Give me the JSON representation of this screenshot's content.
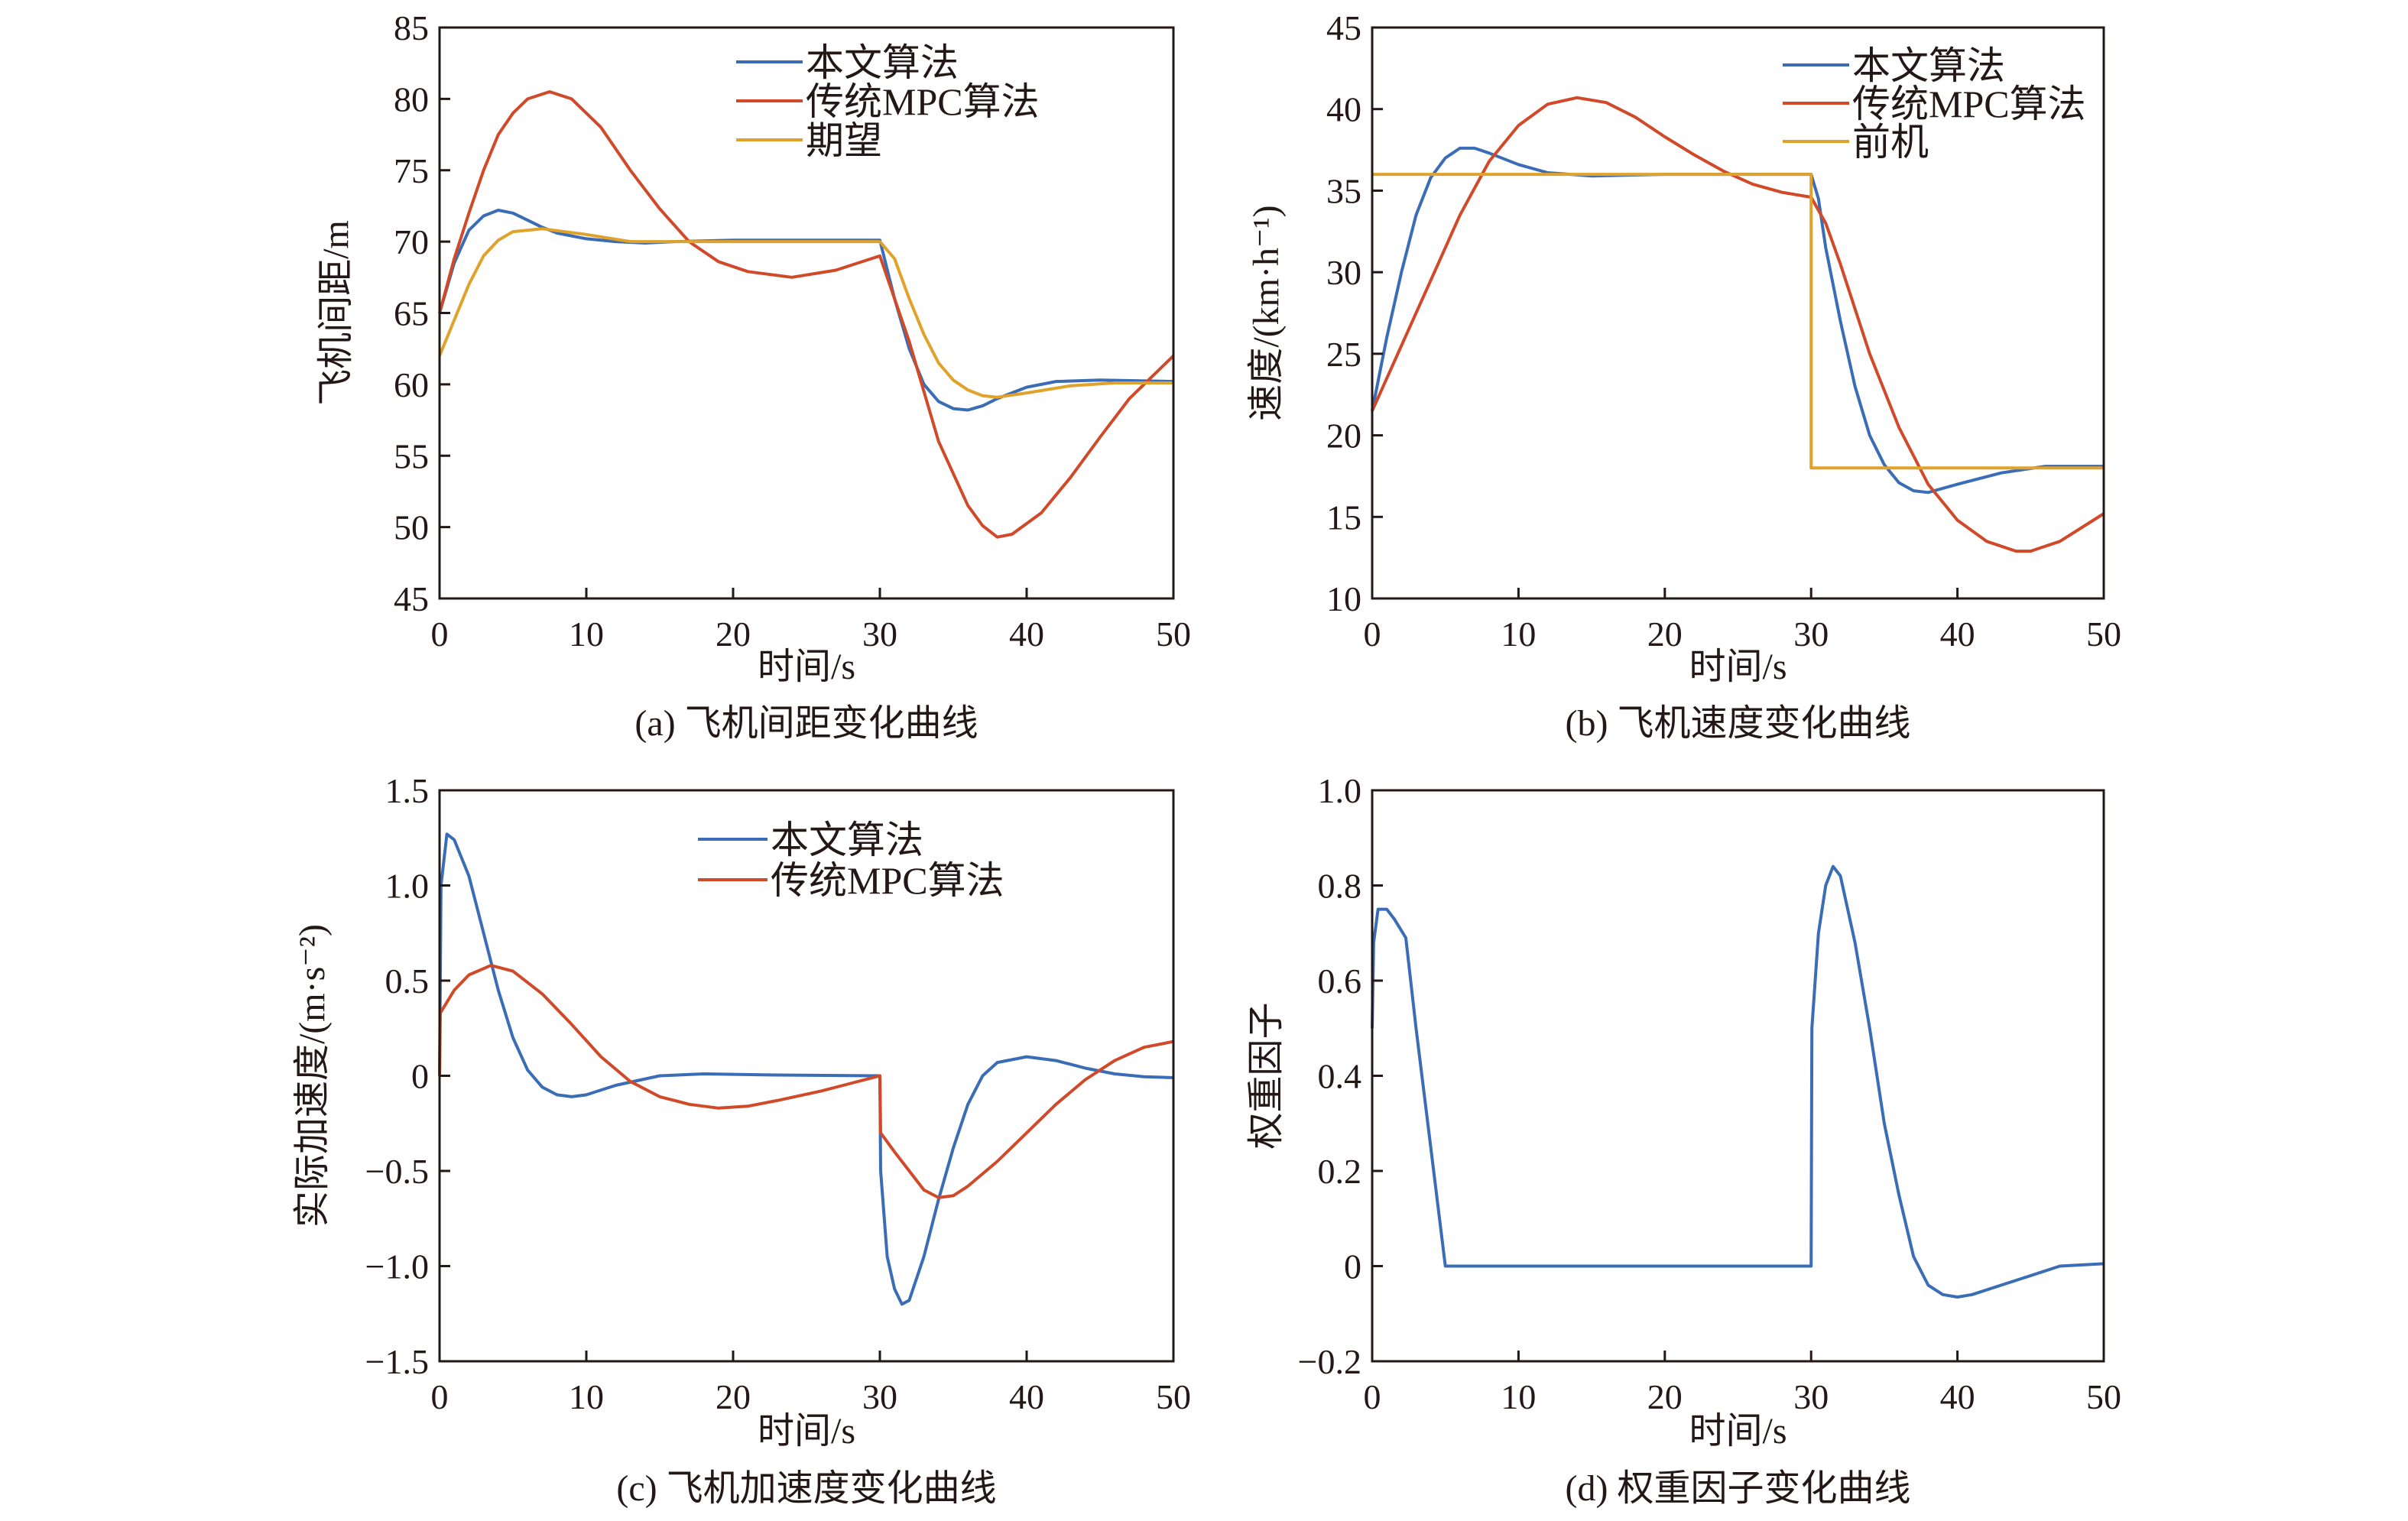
{
  "chart_data": [
    {
      "type": "line",
      "title": "(a) 飞机间距变化曲线",
      "xlabel": "时间/s",
      "ylabel": "飞机间距/m",
      "xlim": [
        0,
        50
      ],
      "ylim": [
        45,
        85
      ],
      "xticks": [
        0,
        10,
        20,
        30,
        40,
        50
      ],
      "xtick_labels": [
        "0",
        "10",
        "20",
        "30",
        "40",
        "50"
      ],
      "yticks": [
        45,
        50,
        55,
        60,
        65,
        70,
        75,
        80,
        85
      ],
      "ytick_labels": [
        "45",
        "50",
        "55",
        "60",
        "65",
        "70",
        "75",
        "80",
        "85"
      ],
      "legend_position": "top-right",
      "series": [
        {
          "name": "本文算法",
          "color": "#3a6db5",
          "x": [
            0,
            1,
            2,
            3,
            4,
            5,
            6,
            7,
            8,
            10,
            12,
            14,
            16,
            20,
            30,
            31,
            32,
            33,
            34,
            35,
            36,
            37,
            38,
            40,
            42,
            45,
            50
          ],
          "y": [
            65,
            68.5,
            70.8,
            71.8,
            72.2,
            72.0,
            71.5,
            71.0,
            70.6,
            70.2,
            70.0,
            69.9,
            70.0,
            70.1,
            70.1,
            66,
            62.5,
            60,
            58.8,
            58.3,
            58.2,
            58.5,
            59,
            59.8,
            60.2,
            60.3,
            60.2
          ]
        },
        {
          "name": "传统MPC算法",
          "color": "#d04a2a",
          "x": [
            0,
            1,
            2,
            3,
            4,
            5,
            6,
            7.5,
            9,
            11,
            13,
            15,
            17,
            19,
            21,
            24,
            27,
            30,
            32,
            34,
            36,
            37,
            38,
            39,
            41,
            43,
            45,
            47,
            49,
            50
          ],
          "y": [
            65,
            68.8,
            72,
            75,
            77.5,
            79,
            80,
            80.5,
            80,
            78,
            75,
            72.3,
            70,
            68.6,
            67.9,
            67.5,
            68,
            69,
            63,
            56,
            51.5,
            50.1,
            49.3,
            49.5,
            51,
            53.5,
            56.3,
            59,
            61,
            62
          ]
        },
        {
          "name": "期望",
          "color": "#e0a22a",
          "x": [
            0,
            1,
            2,
            3,
            4,
            5,
            7,
            10,
            13,
            20,
            30,
            31,
            32,
            33,
            34,
            35,
            36,
            37,
            38,
            40,
            43,
            46,
            50
          ],
          "y": [
            62,
            64.5,
            67,
            69,
            70.1,
            70.7,
            70.9,
            70.5,
            70.0,
            70,
            70,
            68.8,
            66,
            63.5,
            61.5,
            60.3,
            59.6,
            59.2,
            59.1,
            59.4,
            59.9,
            60.1,
            60.1
          ]
        }
      ]
    },
    {
      "type": "line",
      "title": "(b) 飞机速度变化曲线",
      "xlabel": "时间/s",
      "ylabel": "速度/(km·h⁻¹)",
      "xlim": [
        0,
        50
      ],
      "ylim": [
        10,
        45
      ],
      "xticks": [
        0,
        10,
        20,
        30,
        40,
        50
      ],
      "xtick_labels": [
        "0",
        "10",
        "20",
        "30",
        "40",
        "50"
      ],
      "yticks": [
        10,
        15,
        20,
        25,
        30,
        35,
        40,
        45
      ],
      "ytick_labels": [
        "10",
        "15",
        "20",
        "25",
        "30",
        "35",
        "40",
        "45"
      ],
      "legend_position": "top-right",
      "series": [
        {
          "name": "本文算法",
          "color": "#3a6db5",
          "x": [
            0,
            1,
            2,
            3,
            4,
            5,
            6,
            7,
            8,
            10,
            12,
            15,
            20,
            30,
            30.5,
            31,
            32,
            33,
            34,
            35,
            36,
            37,
            38,
            40,
            43,
            46,
            50
          ],
          "y": [
            21.5,
            26,
            30,
            33.5,
            35.8,
            37,
            37.6,
            37.6,
            37.3,
            36.6,
            36.1,
            35.9,
            36,
            36,
            34.5,
            31.5,
            27,
            23,
            20,
            18.2,
            17.1,
            16.6,
            16.5,
            17,
            17.7,
            18.1,
            18.1
          ]
        },
        {
          "name": "传统MPC算法",
          "color": "#d04a2a",
          "x": [
            0,
            2,
            4,
            6,
            8,
            10,
            12,
            14,
            16,
            18,
            20,
            22,
            24,
            26,
            28,
            30,
            31,
            32,
            34,
            36,
            38,
            40,
            42,
            44,
            45,
            47,
            50
          ],
          "y": [
            21.5,
            25.5,
            29.5,
            33.5,
            36.8,
            39,
            40.3,
            40.7,
            40.4,
            39.5,
            38.3,
            37.2,
            36.2,
            35.4,
            34.9,
            34.6,
            33,
            30.5,
            25,
            20.5,
            17,
            14.8,
            13.5,
            12.9,
            12.9,
            13.5,
            15.2
          ]
        },
        {
          "name": "前机",
          "color": "#e0a22a",
          "x": [
            0,
            30,
            30,
            50
          ],
          "y": [
            36,
            36,
            18,
            18
          ]
        }
      ]
    },
    {
      "type": "line",
      "title": "(c) 飞机加速度变化曲线",
      "xlabel": "时间/s",
      "ylabel": "实际加速度/(m·s⁻²)",
      "xlim": [
        0,
        50
      ],
      "ylim": [
        -1.5,
        1.5
      ],
      "xticks": [
        0,
        10,
        20,
        30,
        40,
        50
      ],
      "xtick_labels": [
        "0",
        "10",
        "20",
        "30",
        "40",
        "50"
      ],
      "yticks": [
        -1.5,
        -1.0,
        -0.5,
        0,
        0.5,
        1.0,
        1.5
      ],
      "ytick_labels": [
        "−1.5",
        "−1.0",
        "−0.5",
        "0",
        "0.5",
        "1.0",
        "1.5"
      ],
      "legend_position": "top-right",
      "series": [
        {
          "name": "本文算法",
          "color": "#3a6db5",
          "x": [
            0,
            0.1,
            0.5,
            1,
            2,
            3,
            4,
            5,
            6,
            7,
            8,
            9,
            10,
            12,
            15,
            18,
            22,
            30,
            30.05,
            30.5,
            31,
            31.5,
            32,
            33,
            34,
            35,
            36,
            37,
            38,
            40,
            42,
            44,
            46,
            48,
            50
          ],
          "y": [
            0,
            1.0,
            1.27,
            1.24,
            1.05,
            0.75,
            0.45,
            0.2,
            0.03,
            -0.06,
            -0.1,
            -0.11,
            -0.1,
            -0.05,
            0,
            0.01,
            0.005,
            0,
            -0.5,
            -0.95,
            -1.12,
            -1.2,
            -1.18,
            -0.95,
            -0.65,
            -0.38,
            -0.15,
            0,
            0.07,
            0.1,
            0.08,
            0.04,
            0.01,
            -0.005,
            -0.01
          ]
        },
        {
          "name": "传统MPC算法",
          "color": "#d04a2a",
          "x": [
            0,
            0.05,
            1,
            2,
            3.5,
            5,
            7,
            9,
            11,
            13,
            15,
            17,
            19,
            21,
            23,
            26,
            28,
            30,
            30.05,
            31,
            32,
            33,
            34,
            35,
            36,
            38,
            40,
            42,
            44,
            46,
            48,
            50
          ],
          "y": [
            0,
            0.33,
            0.45,
            0.53,
            0.58,
            0.55,
            0.43,
            0.27,
            0.1,
            -0.03,
            -0.11,
            -0.15,
            -0.17,
            -0.16,
            -0.13,
            -0.08,
            -0.04,
            0,
            -0.3,
            -0.4,
            -0.5,
            -0.6,
            -0.64,
            -0.63,
            -0.58,
            -0.45,
            -0.3,
            -0.15,
            -0.02,
            0.08,
            0.15,
            0.18
          ]
        }
      ]
    },
    {
      "type": "line",
      "title": "(d) 权重因子变化曲线",
      "xlabel": "时间/s",
      "ylabel": "权重因子",
      "xlim": [
        0,
        50
      ],
      "ylim": [
        -0.2,
        1.0
      ],
      "xticks": [
        0,
        10,
        20,
        30,
        40,
        50
      ],
      "xtick_labels": [
        "0",
        "10",
        "20",
        "30",
        "40",
        "50"
      ],
      "yticks": [
        -0.2,
        0,
        0.2,
        0.4,
        0.6,
        0.8,
        1.0
      ],
      "ytick_labels": [
        "−0.2",
        "0",
        "0.2",
        "0.4",
        "0.6",
        "0.8",
        "1.0"
      ],
      "legend_position": "none",
      "series": [
        {
          "name": "",
          "color": "#3a6db5",
          "x": [
            0,
            0.1,
            0.4,
            1,
            1.5,
            2.3,
            3,
            4,
            5,
            30,
            30.05,
            30.5,
            31,
            31.5,
            32,
            33,
            34,
            35,
            36,
            37,
            38,
            39,
            40,
            41,
            43,
            45,
            47,
            50
          ],
          "y": [
            0.5,
            0.68,
            0.75,
            0.75,
            0.73,
            0.69,
            0.5,
            0.25,
            0,
            0,
            0.5,
            0.7,
            0.8,
            0.84,
            0.82,
            0.68,
            0.5,
            0.3,
            0.15,
            0.02,
            -0.04,
            -0.06,
            -0.065,
            -0.06,
            -0.04,
            -0.02,
            0,
            0.005
          ]
        }
      ]
    }
  ]
}
